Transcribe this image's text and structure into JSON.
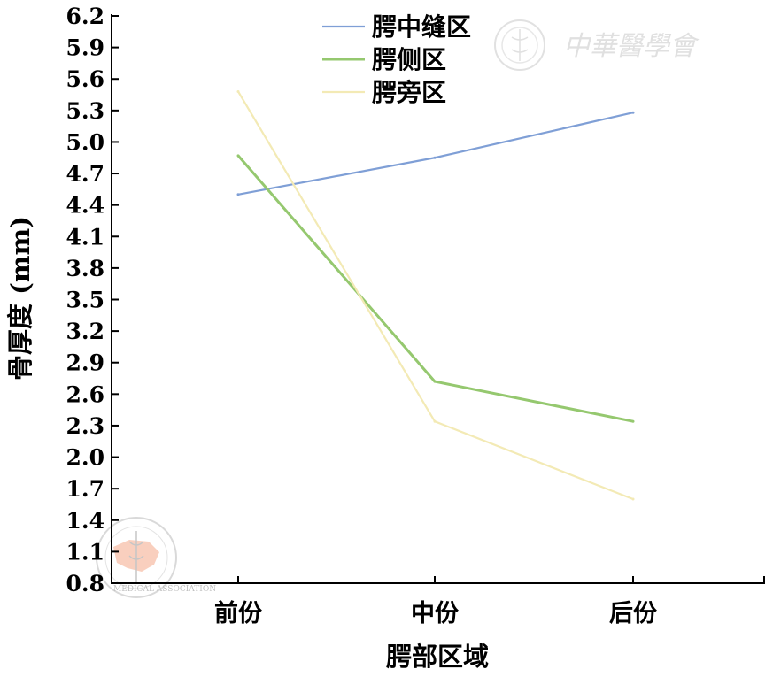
{
  "chart_data": {
    "type": "line",
    "title": "",
    "xlabel": "腭部区域",
    "ylabel": "骨厚度 (mm)",
    "categories": [
      "前份",
      "中份",
      "后份"
    ],
    "ylim": [
      0.8,
      6.2
    ],
    "yticks": [
      "0.8",
      "1.1",
      "1.4",
      "1.7",
      "2.0",
      "2.3",
      "2.6",
      "2.9",
      "3.2",
      "3.5",
      "3.8",
      "4.1",
      "4.4",
      "4.7",
      "5.0",
      "5.3",
      "5.6",
      "5.9",
      "6.2"
    ],
    "grid": false,
    "legend_position": "top",
    "series": [
      {
        "name": "腭中缝区",
        "values": [
          4.5,
          4.85,
          5.28
        ],
        "color": "#7f9fd6"
      },
      {
        "name": "腭侧区",
        "values": [
          4.87,
          2.72,
          2.34
        ],
        "color": "#95c86f"
      },
      {
        "name": "腭旁区",
        "values": [
          5.48,
          2.34,
          1.6
        ],
        "color": "#f3eab5"
      }
    ]
  },
  "watermark": {
    "text": "中華醫學會",
    "seal_text": "MEDICAL ASSOCIATION"
  }
}
